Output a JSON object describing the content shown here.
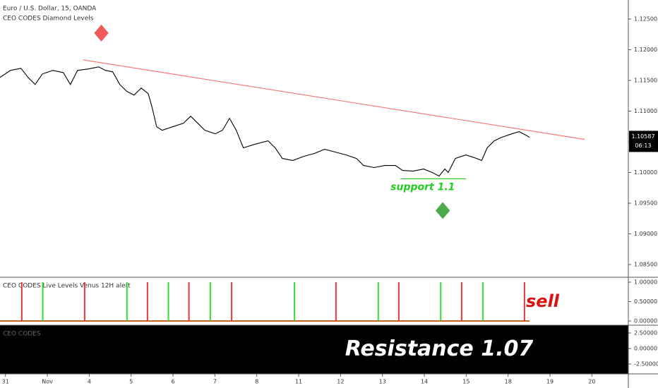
{
  "chart_data": [
    {
      "type": "line",
      "title": "Euro / U.S. Dollar, 15, OANDA",
      "subtitle": "CEO CODES Diamond Levels",
      "color": "#000000",
      "x": [
        -0.13,
        0.12,
        0.37,
        0.54,
        0.71,
        0.88,
        1.13,
        1.38,
        1.55,
        1.72,
        1.97,
        2.23,
        2.39,
        2.56,
        2.73,
        2.9,
        3.07,
        3.24,
        3.41,
        3.49,
        3.61,
        3.74,
        3.99,
        4.25,
        4.42,
        4.59,
        4.76,
        5.01,
        5.18,
        5.35,
        5.51,
        5.68,
        5.94,
        6.27,
        6.44,
        6.61,
        6.86,
        7.12,
        7.37,
        7.62,
        7.88,
        8.13,
        8.38,
        8.55,
        8.8,
        9.06,
        9.31,
        9.48,
        9.73,
        9.98,
        10.19,
        10.35,
        10.49,
        10.57,
        10.74,
        10.99,
        11.25,
        11.37,
        11.5,
        11.67,
        11.84,
        12.09,
        12.26,
        12.43,
        12.51
      ],
      "values": [
        1.11548,
        1.11663,
        1.11697,
        1.11548,
        1.11433,
        1.11605,
        1.11663,
        1.11628,
        1.11433,
        1.11663,
        1.11686,
        1.1172,
        1.11663,
        1.1164,
        1.11433,
        1.11319,
        1.11261,
        1.11376,
        1.11284,
        1.11089,
        1.10745,
        1.10688,
        1.10745,
        1.10802,
        1.10917,
        1.10802,
        1.10688,
        1.1063,
        1.10688,
        1.10883,
        1.10688,
        1.10401,
        1.10458,
        1.10516,
        1.10401,
        1.10229,
        1.10195,
        1.10263,
        1.10309,
        1.10378,
        1.10332,
        1.10286,
        1.10229,
        1.10114,
        1.1008,
        1.10114,
        1.10114,
        1.10034,
        1.10022,
        1.10057,
        1.1,
        1.09942,
        1.10057,
        1.1,
        1.10229,
        1.10286,
        1.10229,
        1.10195,
        1.10401,
        1.10516,
        1.10573,
        1.1063,
        1.10665,
        1.10607,
        1.10573
      ],
      "last_price": 1.10587,
      "countdown": "06:13",
      "trend_line": {
        "x": [
          1.85,
          13.83
        ],
        "values": [
          1.11835,
          1.10539
        ],
        "color": "#f47a7a"
      },
      "support": {
        "x": [
          9.43,
          11.0
        ],
        "value": 1.09896,
        "label": "support 1.1",
        "color": "#22cc22"
      },
      "markers": [
        {
          "x": 2.29,
          "value": 1.12271,
          "color": "#f05a5a"
        },
        {
          "x": 10.44,
          "value": 1.0938,
          "color": "#4caa4c"
        }
      ],
      "xlim": [
        -0.13,
        14.87
      ],
      "xticks": [
        {
          "value": 0,
          "label": "31"
        },
        {
          "value": 1,
          "label": "Nov"
        },
        {
          "value": 2,
          "label": "4"
        },
        {
          "value": 3,
          "label": "5"
        },
        {
          "value": 4,
          "label": "6"
        },
        {
          "value": 5,
          "label": "7"
        },
        {
          "value": 6,
          "label": "8"
        },
        {
          "value": 7,
          "label": "11"
        },
        {
          "value": 8,
          "label": "12"
        },
        {
          "value": 9,
          "label": "13"
        },
        {
          "value": 10,
          "label": "14"
        },
        {
          "value": 11,
          "label": "15"
        },
        {
          "value": 12,
          "label": "18"
        },
        {
          "value": 13,
          "label": "19"
        },
        {
          "value": 14,
          "label": "20"
        }
      ],
      "ylim": [
        1.08305,
        1.1281
      ],
      "yticks": [
        {
          "value": 1.125,
          "label": "1.12500"
        },
        {
          "value": 1.12,
          "label": "1.12000"
        },
        {
          "value": 1.115,
          "label": "1.11500"
        },
        {
          "value": 1.11,
          "label": "1.11000"
        },
        {
          "value": 1.105,
          "label": "1.10500"
        },
        {
          "value": 1.1,
          "label": "1.10000"
        },
        {
          "value": 1.095,
          "label": "1.09500"
        },
        {
          "value": 1.09,
          "label": "1.09000"
        },
        {
          "value": 1.085,
          "label": "1.08500"
        }
      ]
    },
    {
      "type": "spike",
      "title": "CEO CODES Live Levels Venus 12H alert",
      "annotation": "sell",
      "annotation_color": "#e01010",
      "x": [
        0.39,
        0.89,
        1.89,
        2.9,
        3.39,
        3.89,
        4.38,
        4.89,
        5.4,
        6.9,
        7.89,
        8.9,
        9.39,
        10.39,
        10.89,
        11.4,
        12.39
      ],
      "values": [
        1,
        1,
        1,
        1,
        1,
        1,
        1,
        1,
        1,
        1,
        1,
        1,
        1,
        1,
        1,
        1,
        1
      ],
      "colors": [
        "#e53935",
        "#33dd33",
        "#e53935",
        "#33dd33",
        "#e53935",
        "#33dd33",
        "#e53935",
        "#33dd33",
        "#e53935",
        "#33dd33",
        "#e53935",
        "#33dd33",
        "#e53935",
        "#33dd33",
        "#e53935",
        "#33dd33",
        "#e53935"
      ],
      "xlim": [
        -0.13,
        14.87
      ],
      "ylim": [
        -0.091,
        1.127
      ],
      "yticks": [
        {
          "value": 1,
          "label": "1.00000"
        },
        {
          "value": 0.5,
          "label": "0.50000"
        },
        {
          "value": 0,
          "label": "0.00000"
        }
      ]
    },
    {
      "type": "panel",
      "title": "CEO CODES",
      "annotation": "Resistance 1.07",
      "ylim": [
        -4.09,
        3.75
      ],
      "yticks": [
        {
          "value": 2.5,
          "label": "2.50000"
        },
        {
          "value": 0,
          "label": "0.00000"
        },
        {
          "value": -2.5,
          "label": "-2.50000"
        }
      ]
    }
  ]
}
